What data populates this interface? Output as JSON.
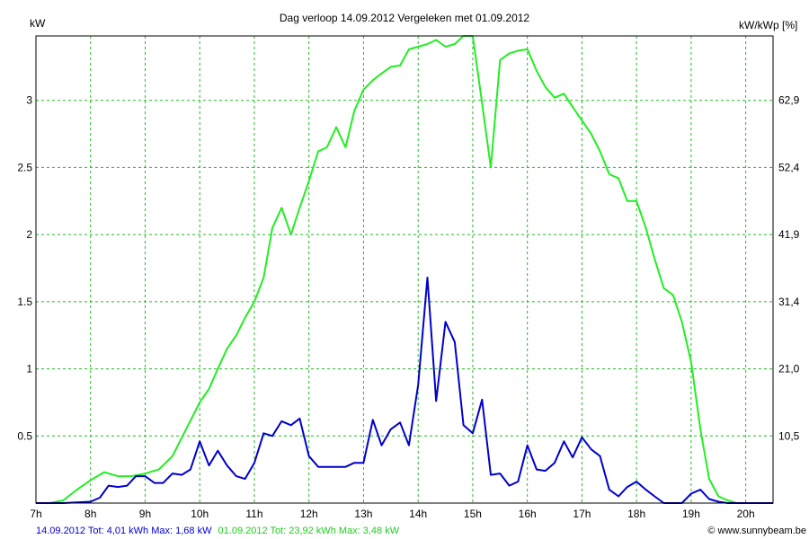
{
  "chart_data": {
    "type": "line",
    "title": "Dag  verloop 14.09.2012   Vergeleken met 01.09.2012",
    "ylabel_left": "kW",
    "ylabel_right": "kW/kWp [%]",
    "xlim": [
      7,
      20.5
    ],
    "ylim": [
      0,
      3.48
    ],
    "x_ticks": [
      7,
      8,
      9,
      10,
      11,
      12,
      13,
      14,
      15,
      16,
      17,
      18,
      19,
      20
    ],
    "x_tick_labels": [
      "7h",
      "8h",
      "9h",
      "10h",
      "11h",
      "12h",
      "13h",
      "14h",
      "15h",
      "16h",
      "17h",
      "18h",
      "19h",
      "20h"
    ],
    "y_ticks": [
      0.5,
      1,
      1.5,
      2,
      2.5,
      3
    ],
    "y_tick_labels": [
      "0.5",
      "1",
      "1.5",
      "2",
      "2.5",
      "3"
    ],
    "y2_ticks": [
      0.5,
      1,
      1.5,
      2,
      2.5,
      3
    ],
    "y2_tick_labels": [
      "10,5",
      "21,0",
      "31,4",
      "41,9",
      "52,4",
      "62,9"
    ],
    "grid": true,
    "colors": {
      "green": "#22ee22",
      "blue": "#0000cc",
      "grid": "#22bb22"
    },
    "series": [
      {
        "name": "01.09.2012",
        "color": "#22ee22",
        "x": [
          7.0,
          7.25,
          7.5,
          7.75,
          8.0,
          8.25,
          8.5,
          8.75,
          9.0,
          9.25,
          9.5,
          9.75,
          10.0,
          10.17,
          10.33,
          10.5,
          10.67,
          10.83,
          11.0,
          11.17,
          11.33,
          11.5,
          11.67,
          11.83,
          12.0,
          12.17,
          12.33,
          12.5,
          12.67,
          12.83,
          13.0,
          13.17,
          13.33,
          13.5,
          13.67,
          13.83,
          14.0,
          14.17,
          14.33,
          14.5,
          14.67,
          14.83,
          15.0,
          15.17,
          15.33,
          15.5,
          15.67,
          15.83,
          16.0,
          16.17,
          16.33,
          16.5,
          16.67,
          16.83,
          17.0,
          17.17,
          17.33,
          17.5,
          17.67,
          17.83,
          18.0,
          18.17,
          18.33,
          18.5,
          18.67,
          18.83,
          19.0,
          19.17,
          19.33,
          19.5,
          19.67,
          19.83,
          20.0,
          20.25,
          20.5
        ],
        "y": [
          0.0,
          0.0,
          0.02,
          0.1,
          0.17,
          0.23,
          0.2,
          0.2,
          0.22,
          0.25,
          0.35,
          0.55,
          0.75,
          0.85,
          1.0,
          1.15,
          1.25,
          1.38,
          1.5,
          1.68,
          2.05,
          2.2,
          2.0,
          2.2,
          2.4,
          2.62,
          2.65,
          2.8,
          2.65,
          2.92,
          3.08,
          3.15,
          3.2,
          3.25,
          3.26,
          3.38,
          3.4,
          3.42,
          3.45,
          3.4,
          3.42,
          3.48,
          3.48,
          2.98,
          2.5,
          3.3,
          3.35,
          3.37,
          3.38,
          3.22,
          3.1,
          3.02,
          3.05,
          2.95,
          2.85,
          2.75,
          2.62,
          2.45,
          2.42,
          2.25,
          2.25,
          2.05,
          1.82,
          1.6,
          1.55,
          1.35,
          1.05,
          0.55,
          0.18,
          0.05,
          0.02,
          0.0,
          0.0,
          0.0,
          0.0
        ]
      },
      {
        "name": "14.09.2012",
        "color": "#0000cc",
        "x": [
          7.0,
          7.5,
          8.0,
          8.17,
          8.33,
          8.5,
          8.67,
          8.83,
          9.0,
          9.17,
          9.33,
          9.5,
          9.67,
          9.83,
          10.0,
          10.17,
          10.33,
          10.5,
          10.67,
          10.83,
          11.0,
          11.17,
          11.33,
          11.5,
          11.67,
          11.83,
          12.0,
          12.17,
          12.33,
          12.5,
          12.67,
          12.83,
          13.0,
          13.17,
          13.33,
          13.5,
          13.67,
          13.83,
          14.0,
          14.17,
          14.33,
          14.5,
          14.67,
          14.83,
          15.0,
          15.17,
          15.33,
          15.5,
          15.67,
          15.83,
          16.0,
          16.17,
          16.33,
          16.5,
          16.67,
          16.83,
          17.0,
          17.17,
          17.33,
          17.5,
          17.67,
          17.83,
          18.0,
          18.17,
          18.33,
          18.5,
          18.67,
          18.83,
          19.0,
          19.17,
          19.33,
          19.5,
          19.67,
          19.83,
          20.0,
          20.5
        ],
        "y": [
          0.0,
          0.0,
          0.01,
          0.04,
          0.13,
          0.12,
          0.13,
          0.2,
          0.2,
          0.15,
          0.15,
          0.22,
          0.21,
          0.25,
          0.46,
          0.28,
          0.39,
          0.28,
          0.2,
          0.18,
          0.3,
          0.52,
          0.5,
          0.61,
          0.58,
          0.63,
          0.35,
          0.27,
          0.27,
          0.27,
          0.27,
          0.3,
          0.3,
          0.62,
          0.43,
          0.55,
          0.6,
          0.43,
          0.88,
          1.68,
          0.76,
          1.35,
          1.2,
          0.58,
          0.52,
          0.77,
          0.21,
          0.22,
          0.13,
          0.16,
          0.43,
          0.25,
          0.24,
          0.3,
          0.46,
          0.34,
          0.49,
          0.4,
          0.35,
          0.1,
          0.05,
          0.12,
          0.16,
          0.1,
          0.05,
          0.0,
          0.0,
          0.0,
          0.07,
          0.1,
          0.03,
          0.01,
          0.0,
          0.0,
          0.0,
          0.0
        ]
      }
    ]
  },
  "footer": {
    "blue_text": "14.09.2012 Tot: 4,01 kWh Max: 1,68 kW",
    "green_text": "01.09.2012 Tot: 23,92 kWh Max: 3,48 kW",
    "copyright": "© www.sunnybeam.be"
  }
}
